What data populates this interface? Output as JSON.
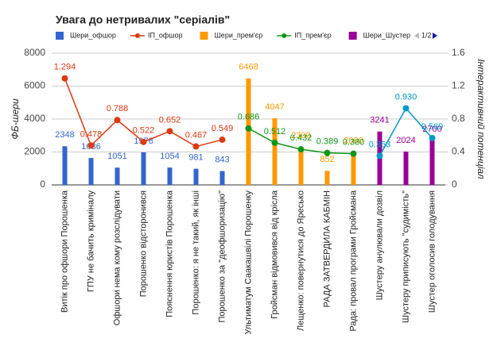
{
  "chart_data": {
    "type": "combo",
    "title": "Увага до нетривалих \"серіалів\"",
    "y_label": "ФБ-шери",
    "y2_label": "Інтерактивний потенціал",
    "legend_page": "1/2",
    "categories": [
      "Витік про офшори Порошенка",
      "ГПУ не бачить криміналу",
      "Офшори нема кому розслідувати",
      "Порошенко відсторонився",
      "Пояснення юристів Порошенка",
      "Порошенко: я не такий, як інші",
      "Порошенко за \"деофшоризацію\"",
      "Ультиматум Саакашвілі Порошенку",
      "Гройсман відмовився від крісла",
      "Лещенко: повернутися до Яресько",
      "РАДА ЗАТВЕРДИЛА КАБМІН",
      "Рада: провал програми Гройсмана",
      "Шустеру анулювали дозвіл",
      "Шустеру приписують \"судимість\"",
      "Шустер оголосив голодування"
    ],
    "series": [
      {
        "name": "Шери_офшор",
        "kind": "bar",
        "color": "#3366cc",
        "values": [
          2348,
          1636,
          1051,
          1978,
          1054,
          981,
          843,
          null,
          null,
          null,
          null,
          null,
          null,
          null,
          null
        ]
      },
      {
        "name": "ІП_офшор",
        "kind": "line",
        "axis": "y2",
        "color": "#dc3912",
        "values": [
          1.294,
          0.478,
          0.788,
          0.522,
          0.652,
          0.467,
          0.549,
          null,
          null,
          null,
          null,
          null,
          null,
          null,
          null
        ],
        "value_labels": [
          "1.294",
          "0.478",
          "0.788",
          "0.522",
          "0.652",
          "0.467",
          "0.549",
          null,
          null,
          null,
          null,
          null,
          null,
          null,
          null
        ]
      },
      {
        "name": "Шери_прем'єр",
        "kind": "bar",
        "color": "#ff9900",
        "values": [
          null,
          null,
          null,
          null,
          null,
          null,
          null,
          6468,
          4047,
          2300,
          852,
          2000,
          null,
          null,
          null
        ]
      },
      {
        "name": "ІП_прем'єр",
        "kind": "line",
        "axis": "y2",
        "color": "#109618",
        "values": [
          null,
          null,
          null,
          null,
          null,
          null,
          null,
          0.686,
          0.512,
          0.432,
          0.389,
          0.38,
          null,
          null,
          null
        ],
        "value_labels": [
          null,
          null,
          null,
          null,
          null,
          null,
          null,
          "0.686",
          "0.512",
          "0.432",
          "0.389",
          "0.380",
          null,
          null,
          null
        ]
      },
      {
        "name": "Шери_Шустер",
        "kind": "bar",
        "color": "#990099",
        "values": [
          null,
          null,
          null,
          null,
          null,
          null,
          null,
          null,
          null,
          null,
          null,
          null,
          3241,
          2024,
          2700
        ]
      },
      {
        "kind": "line",
        "axis": "y2",
        "color": "#0099c6",
        "values": [
          null,
          null,
          null,
          null,
          null,
          null,
          null,
          null,
          null,
          null,
          null,
          null,
          0.353,
          0.93,
          0.569
        ],
        "value_labels": [
          null,
          null,
          null,
          null,
          null,
          null,
          null,
          null,
          null,
          null,
          null,
          null,
          "0.353",
          "0.930",
          "0.569"
        ]
      }
    ],
    "ylim": [
      0,
      8000
    ],
    "yticks": [
      0,
      2000,
      4000,
      6000,
      8000
    ],
    "y2lim": [
      0,
      1.6
    ],
    "y2ticks": [
      0,
      0.4,
      0.8,
      1.2,
      1.6
    ],
    "grid": true
  }
}
